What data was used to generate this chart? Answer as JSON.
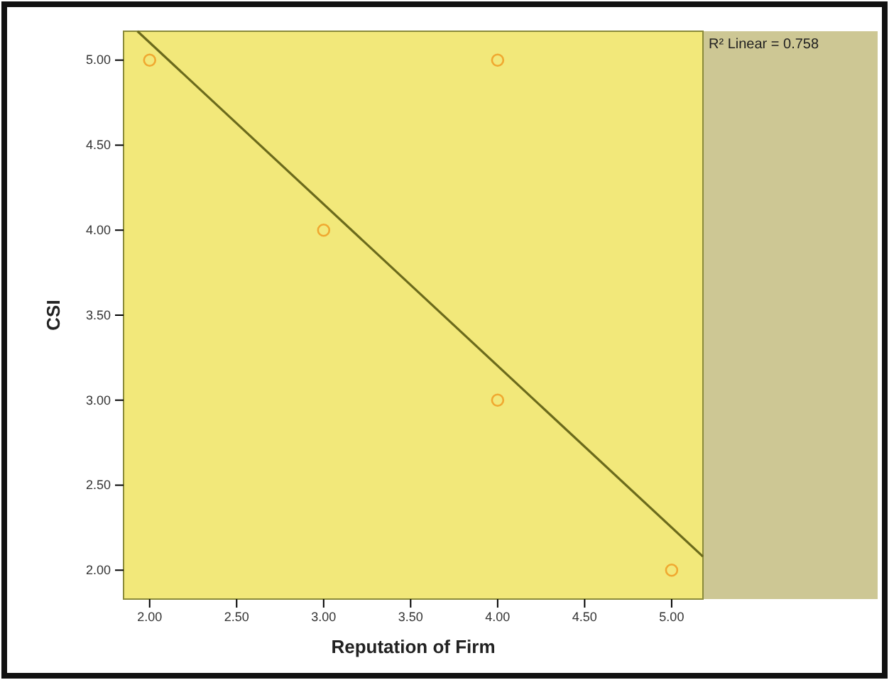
{
  "chart_data": {
    "type": "scatter",
    "xlabel": "Reputation of Firm",
    "ylabel": "CSI",
    "xlim": [
      1.85,
      5.18
    ],
    "ylim": [
      1.83,
      5.17
    ],
    "xticks": [
      {
        "value": 2,
        "label": "2.00"
      },
      {
        "value": 2.5,
        "label": "2.50"
      },
      {
        "value": 3,
        "label": "3.00"
      },
      {
        "value": 3.5,
        "label": "3.50"
      },
      {
        "value": 4,
        "label": "4.00"
      },
      {
        "value": 4.5,
        "label": "4.50"
      },
      {
        "value": 5,
        "label": "5.00"
      }
    ],
    "yticks": [
      {
        "value": 2,
        "label": "2.00"
      },
      {
        "value": 2.5,
        "label": "2.50"
      },
      {
        "value": 3,
        "label": "3.00"
      },
      {
        "value": 3.5,
        "label": "3.50"
      },
      {
        "value": 4,
        "label": "4.00"
      },
      {
        "value": 4.5,
        "label": "4.50"
      },
      {
        "value": 5,
        "label": "5.00"
      }
    ],
    "grid": false,
    "annotations": [
      "R² Linear = 0.758"
    ],
    "series": [
      {
        "marker": "circle",
        "color": "#f0a830",
        "x": [
          2,
          3,
          4,
          4,
          5
        ],
        "values": [
          5,
          4,
          5,
          3,
          2
        ]
      },
      {
        "type": "line",
        "marker": "none",
        "color": "#6b6a1c",
        "x": [
          1.93,
          5.18
        ],
        "values": [
          5.17,
          2.08
        ]
      }
    ]
  }
}
